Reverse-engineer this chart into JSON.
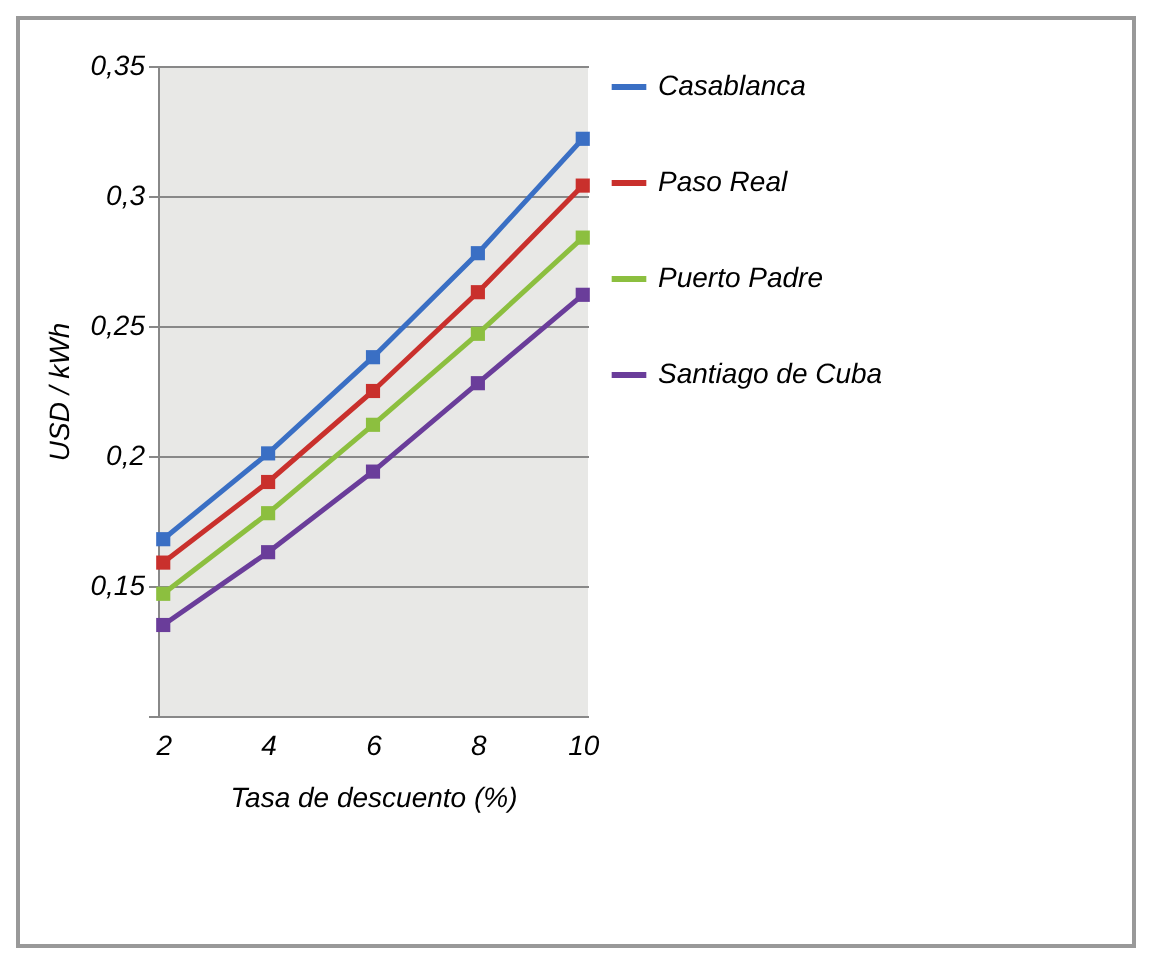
{
  "chart_data": {
    "type": "line",
    "xlabel": "Tasa de  descuento (%)",
    "ylabel": "USD / kWh",
    "categories": [
      "2",
      "4",
      "6",
      "8",
      "10"
    ],
    "series": [
      {
        "name": "Casablanca",
        "color": "#3a6fc4",
        "values": [
          0.168,
          0.201,
          0.238,
          0.278,
          0.322
        ]
      },
      {
        "name": "Paso Real",
        "color": "#c9302c",
        "values": [
          0.159,
          0.19,
          0.225,
          0.263,
          0.304
        ]
      },
      {
        "name": "Puerto Padre",
        "color": "#8cbf3f",
        "values": [
          0.147,
          0.178,
          0.212,
          0.247,
          0.284
        ]
      },
      {
        "name": "Santiago de Cuba",
        "color": "#6a3d9a",
        "values": [
          0.135,
          0.163,
          0.194,
          0.228,
          0.262
        ]
      }
    ],
    "ylim": [
      0.1,
      0.35
    ],
    "yticks": [
      {
        "value": 0.1,
        "label": null
      },
      {
        "value": 0.15,
        "label": "0,15"
      },
      {
        "value": 0.2,
        "label": "0,2"
      },
      {
        "value": 0.25,
        "label": "0,25"
      },
      {
        "value": 0.3,
        "label": "0,3"
      },
      {
        "value": 0.35,
        "label": "0,35"
      }
    ],
    "grid": "y",
    "legend": "right",
    "marker": "square"
  }
}
